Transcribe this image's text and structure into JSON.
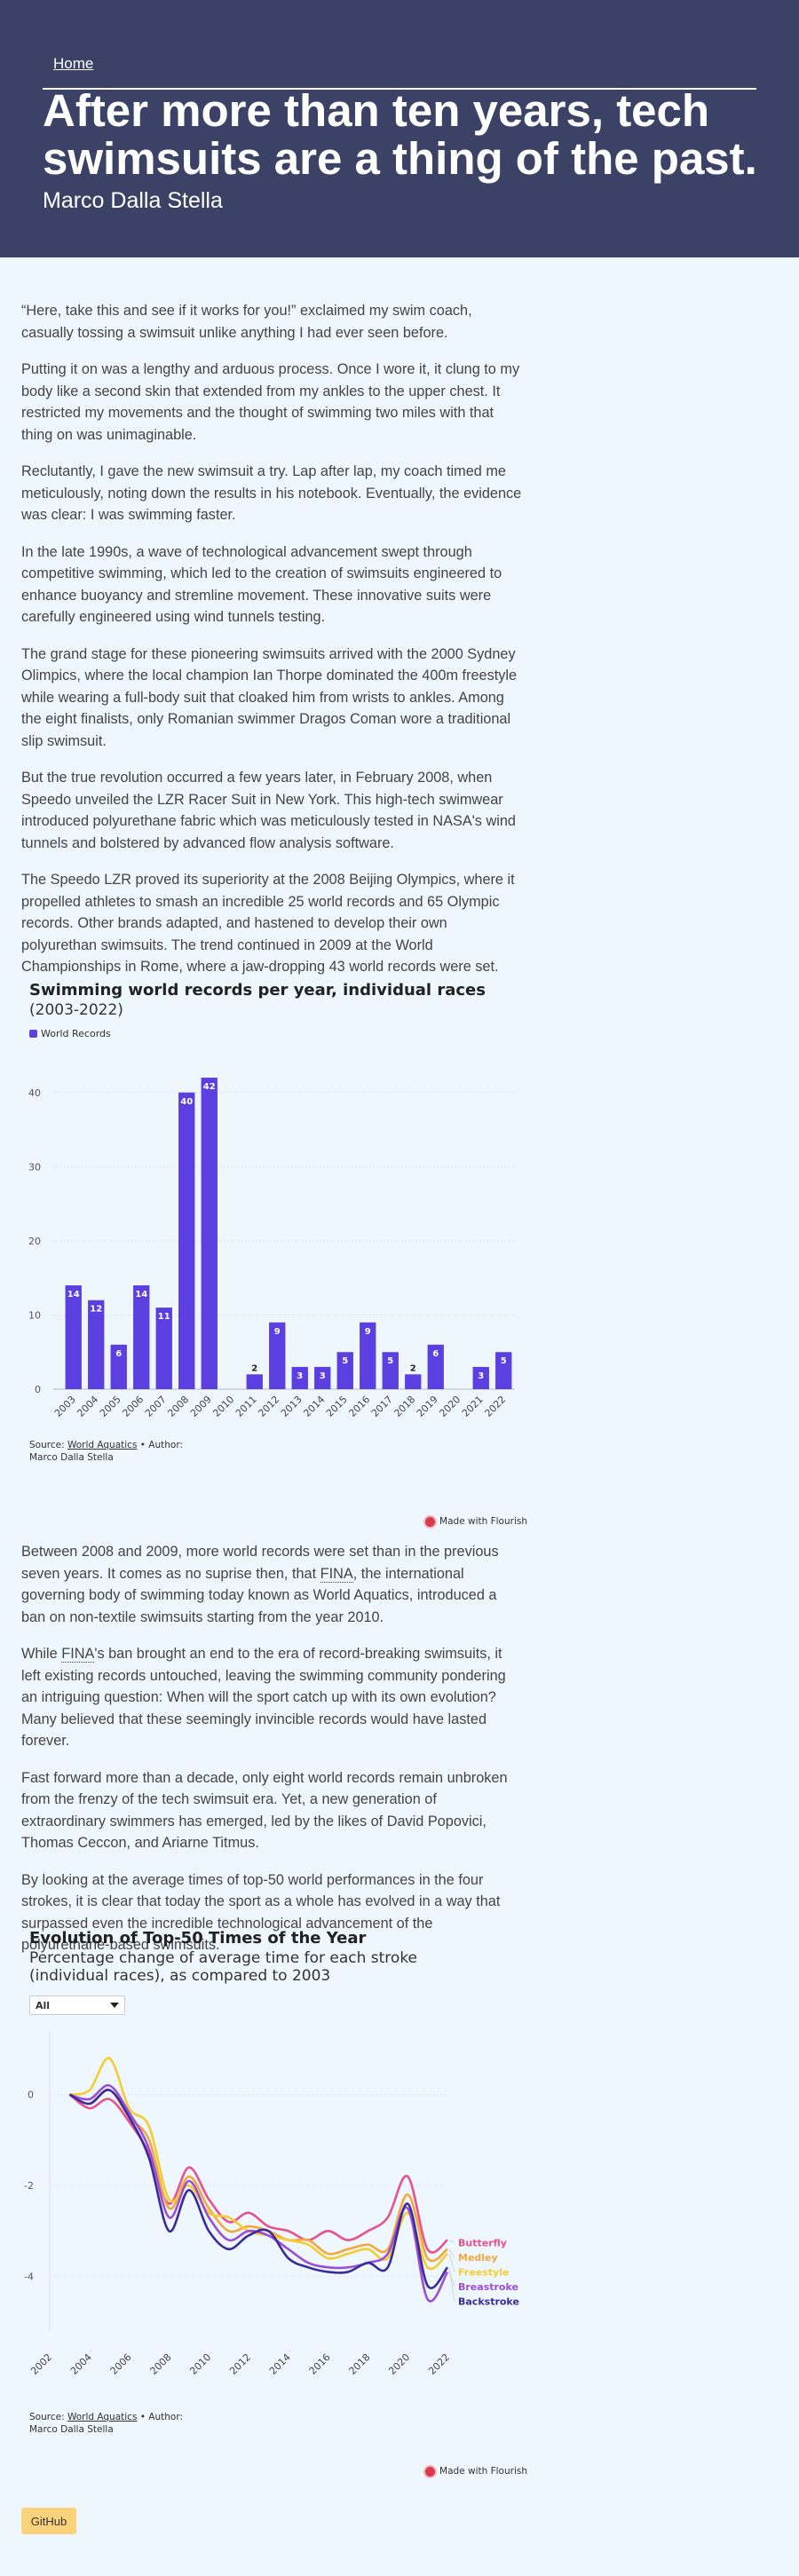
{
  "header": {
    "home_link": "Home",
    "title": "After more than ten years, tech swimsuits are a thing of the past.",
    "author": "Marco Dalla Stella"
  },
  "article": {
    "paragraphs_1": [
      "“Here, take this and see if it works for you!” exclaimed my swim coach, casually tossing a swimsuit unlike anything I had ever seen before.",
      "Putting it on was a lengthy and arduous process. Once I wore it, it clung to my body like a second skin that extended from my ankles to the upper chest. It restricted my movements and the thought of swimming two miles with that thing on was unimaginable.",
      "Reclutantly, I gave the new swimsuit a try. Lap after lap, my coach timed me meticulously, noting down the results in his notebook. Eventually, the evidence was clear: I was swimming faster.",
      "In the late 1990s, a wave of technological advancement swept through competitive swimming, which led to the creation of swimsuits engineered to enhance buoyancy and stremline movement. These innovative suits were carefully engineered using wind tunnels testing.",
      "The grand stage for these pioneering swimsuits arrived with the 2000 Sydney Olimpics, where the local champion Ian Thorpe dominated the 400m freestyle while wearing a full-body suit that cloaked him from wrists to ankles. Among the eight finalists, only Romanian swimmer Dragos Coman wore a traditional slip swimsuit.",
      "But the true revolution occurred a few years later, in February 2008, when Speedo unveiled the LZR Racer Suit in New York. This high-tech swimwear introduced polyurethane fabric which was meticulously tested in NASA's wind tunnels and bolstered by advanced flow analysis software.",
      "The Speedo LZR proved its superiority at the 2008 Beijing Olympics, where it propelled athletes to smash an incredible 25 world records and 65 Olympic records. Other brands adapted, and hastened to develop their own polyurethan swimsuits. The trend continued in 2009 at the World Championships in Rome, where a jaw-dropping 43 world records were set."
    ],
    "p_fina_1_before": "Between 2008 and 2009, more world records were set than in the previous seven years. It comes as no suprise then, that ",
    "fina": "FINA",
    "p_fina_1_after": ", the international governing body of swimming today known as World Aquatics, introduced a ban on non-textile swimsuits starting from the year 2010.",
    "p_fina_2_before": "While ",
    "p_fina_2_after": "'s ban brought an end to the era of record-breaking swimsuits, it left existing records untouched, leaving the swimming community pondering an intriguing question: When will the sport catch up with its own evolution? Many believed that these seemingly invincible records would have lasted forever.",
    "paragraphs_2": [
      "Fast forward more than a decade, only eight world records remain unbroken from the frenzy of the tech swimsuit era. Yet, a new generation of extraordinary swimmers has emerged, led by the likes of David Popovici, Thomas Ceccon, and Ariarne Titmus.",
      "By looking at the average times of top-50 world performances in the four strokes, it is clear that today the sport as a whole has evolved in a way that surpassed even the incredible technological advancement of the polyurethane-based swimsuits."
    ],
    "github": "GitHub"
  },
  "chart1": {
    "title": "Swimming world records per year, individual races",
    "subtitle": "(2003-2022)",
    "legend": "World Records",
    "source_prefix": "Source: ",
    "source_link": "World Aquatics",
    "source_suffix": " • Author:",
    "source_author": "Marco Dalla Stella",
    "made_with": "Made with Flourish",
    "colors": {
      "bar": "#5b3fe0",
      "grid": "#e1e6ef",
      "axis": "#888888"
    }
  },
  "chart2": {
    "title": "Evolution of Top-50 Times of the Year",
    "subtitle": "Percentage change of average time for each stroke (individual races), as compared to 2003",
    "select_value": "All",
    "source_prefix": "Source: ",
    "source_link": "World Aquatics",
    "source_suffix": " • Author:",
    "source_author": "Marco Dalla Stella",
    "made_with": "Made with Flourish"
  },
  "chart_data": [
    {
      "type": "bar",
      "title": "Swimming world records per year, individual races",
      "subtitle": "(2003-2022)",
      "categories": [
        "2003",
        "2004",
        "2005",
        "2006",
        "2007",
        "2008",
        "2009",
        "2010",
        "2011",
        "2012",
        "2013",
        "2014",
        "2015",
        "2016",
        "2017",
        "2018",
        "2019",
        "2020",
        "2021",
        "2022"
      ],
      "series": [
        {
          "name": "World Records",
          "values": [
            14,
            12,
            6,
            14,
            11,
            40,
            42,
            0,
            2,
            9,
            3,
            3,
            5,
            9,
            5,
            2,
            6,
            0,
            3,
            5
          ]
        }
      ],
      "ylim": [
        0,
        45
      ],
      "yticks": [
        0,
        10,
        20,
        30,
        40
      ],
      "grid": true,
      "legend_position": "top-left"
    },
    {
      "type": "line",
      "title": "Evolution of Top-50 Times of the Year",
      "subtitle": "Percentage change of average time for each stroke (individual races), as compared to 2003",
      "x": [
        2003,
        2004,
        2005,
        2006,
        2007,
        2008,
        2009,
        2010,
        2011,
        2012,
        2013,
        2014,
        2015,
        2016,
        2017,
        2018,
        2019,
        2020,
        2021,
        2022
      ],
      "xticks": [
        2002,
        2004,
        2006,
        2008,
        2010,
        2012,
        2014,
        2016,
        2018,
        2020,
        2022
      ],
      "yticks": [
        0,
        -2,
        -4
      ],
      "ylim": [
        -5.2,
        1.4
      ],
      "grid": true,
      "series": [
        {
          "name": "Butterfly",
          "color": "#e8528c",
          "values": [
            0,
            -0.3,
            -0.1,
            -0.6,
            -1.3,
            -2.4,
            -1.6,
            -2.3,
            -2.8,
            -2.6,
            -2.9,
            -3.0,
            -3.2,
            -3.0,
            -3.2,
            -3.0,
            -2.7,
            -1.8,
            -3.4,
            -3.2
          ]
        },
        {
          "name": "Medley",
          "color": "#f2a93b",
          "values": [
            0,
            -0.2,
            0.1,
            -0.5,
            -1.0,
            -2.5,
            -1.8,
            -2.5,
            -3.0,
            -2.9,
            -3.0,
            -3.2,
            -3.2,
            -3.5,
            -3.4,
            -3.3,
            -3.4,
            -2.2,
            -3.6,
            -3.4
          ]
        },
        {
          "name": "Freestyle",
          "color": "#f5cd33",
          "values": [
            0,
            0.1,
            0.8,
            -0.3,
            -0.7,
            -2.3,
            -2.0,
            -2.6,
            -2.7,
            -3.0,
            -3.1,
            -3.2,
            -3.3,
            -3.6,
            -3.5,
            -3.4,
            -3.6,
            -2.6,
            -3.8,
            -3.5
          ]
        },
        {
          "name": "Breastroke",
          "color": "#9b4fd6",
          "values": [
            0,
            -0.1,
            0.2,
            -0.4,
            -1.2,
            -2.7,
            -1.9,
            -2.7,
            -3.2,
            -3.0,
            -3.1,
            -3.4,
            -3.7,
            -3.8,
            -3.8,
            -3.7,
            -3.5,
            -2.5,
            -4.5,
            -3.9
          ]
        },
        {
          "name": "Backstroke",
          "color": "#3a2a9c",
          "values": [
            0,
            -0.2,
            0.1,
            -0.5,
            -1.4,
            -3.0,
            -2.1,
            -3.0,
            -3.4,
            -3.1,
            -3.0,
            -3.6,
            -3.8,
            -3.9,
            -3.9,
            -3.7,
            -3.8,
            -2.4,
            -4.2,
            -3.8
          ]
        }
      ]
    }
  ]
}
